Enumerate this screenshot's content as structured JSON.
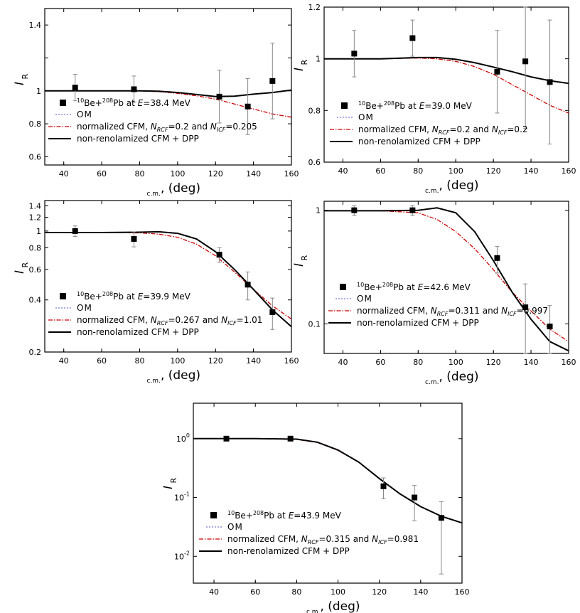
{
  "chart_data": [
    {
      "type": "line",
      "scale": "linear",
      "ylim": [
        0.55,
        1.5
      ],
      "xlim": [
        30,
        160
      ],
      "yticks": [
        0.6,
        0.8,
        1.0,
        1.2,
        1.4
      ],
      "ytick_labels": [
        "0.6",
        "0.8",
        "1",
        "",
        "1.4"
      ],
      "xticks": [
        40,
        60,
        80,
        100,
        120,
        140,
        160
      ],
      "ylabel": "I",
      "ylabel_sub": "R",
      "xlabel_sub": "c.m.",
      "xlabel": ", (deg)",
      "legend": {
        "reaction_pre": "10",
        "reaction_be": "Be+",
        "reaction_mass": "208",
        "reaction_pb": "Pb at ",
        "reaction_e": "E",
        "reaction_energy": "=38.4 MeV",
        "om": "OM",
        "cfm_prefix": "normalized CFM, ",
        "n_symbol": "N",
        "n_rcf_sub": "RCF",
        "n_rcf_value": "=0.2 and ",
        "n_icf_sub": "ICF",
        "n_icf_value": "=0.205",
        "dpp": "non-renolamized CFM + DPP"
      },
      "experiment": {
        "x": [
          46,
          77,
          122,
          137,
          150
        ],
        "y": [
          1.02,
          1.01,
          0.965,
          0.905,
          1.06
        ],
        "err": [
          0.08,
          0.08,
          0.16,
          0.17,
          0.23
        ]
      },
      "series": [
        {
          "name": "normalized CFM",
          "x": [
            30,
            60,
            80,
            90,
            100,
            110,
            120,
            130,
            140,
            150,
            160
          ],
          "y": [
            1.0,
            1.0,
            1.0,
            0.995,
            0.985,
            0.97,
            0.95,
            0.92,
            0.89,
            0.86,
            0.84
          ]
        },
        {
          "name": "non-renolamized CFM + DPP",
          "x": [
            30,
            60,
            80,
            90,
            100,
            110,
            120,
            130,
            140,
            150,
            160
          ],
          "y": [
            1.0,
            1.0,
            1.0,
            0.998,
            0.99,
            0.978,
            0.966,
            0.968,
            0.98,
            0.99,
            1.005
          ]
        }
      ]
    },
    {
      "type": "line",
      "scale": "linear",
      "ylim": [
        0.6,
        1.2
      ],
      "xlim": [
        30,
        160
      ],
      "yticks": [
        0.6,
        0.8,
        1.0,
        1.2
      ],
      "ytick_labels": [
        "0.6",
        "0.8",
        "1",
        "1.2"
      ],
      "xticks": [
        40,
        60,
        80,
        100,
        120,
        140,
        160
      ],
      "ylabel": "I",
      "ylabel_sub": "R",
      "xlabel_sub": "c.m.",
      "xlabel": ", (deg)",
      "legend": {
        "reaction_pre": "10",
        "reaction_be": "Be+",
        "reaction_mass": "208",
        "reaction_pb": "Pb at ",
        "reaction_e": "E",
        "reaction_energy": "=39.0 MeV",
        "om": "OM",
        "cfm_prefix": "normalized CFM, ",
        "n_symbol": "N",
        "n_rcf_sub": "RCF",
        "n_rcf_value": "=0.2 and ",
        "n_icf_sub": "ICF",
        "n_icf_value": "=0.2",
        "dpp": "non-renolamized CFM + DPP"
      },
      "experiment": {
        "x": [
          46,
          77,
          122,
          137,
          150
        ],
        "y": [
          1.02,
          1.08,
          0.95,
          0.99,
          0.91
        ],
        "err": [
          0.09,
          0.07,
          0.16,
          0.26,
          0.24
        ]
      },
      "series": [
        {
          "name": "normalized CFM",
          "x": [
            30,
            60,
            80,
            90,
            100,
            110,
            120,
            130,
            140,
            150,
            160
          ],
          "y": [
            1.0,
            1.0,
            1.003,
            1.0,
            0.99,
            0.97,
            0.94,
            0.9,
            0.86,
            0.82,
            0.79
          ]
        },
        {
          "name": "non-renolamized CFM + DPP",
          "x": [
            30,
            60,
            80,
            90,
            100,
            110,
            120,
            130,
            140,
            150,
            160
          ],
          "y": [
            1.0,
            1.0,
            1.005,
            1.005,
            0.998,
            0.985,
            0.968,
            0.95,
            0.93,
            0.915,
            0.905
          ]
        }
      ]
    },
    {
      "type": "line",
      "scale": "log",
      "ylim": [
        0.2,
        1.5
      ],
      "xlim": [
        30,
        160
      ],
      "yticks": [
        0.2,
        0.4,
        0.6,
        0.8,
        1.0,
        1.2,
        1.4
      ],
      "ytick_labels": [
        "0.2",
        "0.4",
        "0.6",
        "0.8",
        "1",
        "1.2",
        "1.4"
      ],
      "xticks": [
        40,
        60,
        80,
        100,
        120,
        140,
        160
      ],
      "ylabel": "I",
      "ylabel_sub": "R",
      "xlabel_sub": "c.m.",
      "xlabel": ", (deg)",
      "legend": {
        "reaction_pre": "10",
        "reaction_be": "Be+",
        "reaction_mass": "208",
        "reaction_pb": "Pb at ",
        "reaction_e": "E",
        "reaction_energy": "=39.9 MeV",
        "om": "OM",
        "cfm_prefix": "normalized CFM, ",
        "n_symbol": "N",
        "n_rcf_sub": "RCF",
        "n_rcf_value": "=0.267 and ",
        "n_icf_sub": "ICF",
        "n_icf_value": "=1.01",
        "dpp": "non-renolamized CFM + DPP"
      },
      "experiment": {
        "x": [
          46,
          77,
          122,
          137,
          150
        ],
        "y": [
          1.0,
          0.9,
          0.73,
          0.49,
          0.34
        ],
        "err": [
          0.07,
          0.09,
          0.07,
          0.09,
          0.07
        ]
      },
      "series": [
        {
          "name": "normalized CFM",
          "x": [
            30,
            60,
            80,
            90,
            100,
            110,
            120,
            130,
            140,
            150,
            160
          ],
          "y": [
            0.98,
            0.98,
            0.975,
            0.96,
            0.92,
            0.84,
            0.72,
            0.58,
            0.46,
            0.37,
            0.31
          ]
        },
        {
          "name": "non-renolamized CFM + DPP",
          "x": [
            30,
            60,
            80,
            90,
            100,
            110,
            120,
            130,
            140,
            150,
            160
          ],
          "y": [
            0.98,
            0.98,
            0.985,
            0.99,
            0.97,
            0.9,
            0.76,
            0.6,
            0.46,
            0.35,
            0.28
          ]
        }
      ]
    },
    {
      "type": "line",
      "scale": "log",
      "ylim": [
        0.055,
        1.2
      ],
      "xlim": [
        30,
        160
      ],
      "yticks": [
        0.1,
        1.0
      ],
      "ytick_labels": [
        "0.1",
        "1"
      ],
      "xticks": [
        40,
        60,
        80,
        100,
        120,
        140,
        160
      ],
      "ylabel": "I",
      "ylabel_sub": "R",
      "xlabel_sub": "c.m.",
      "xlabel": ", (deg)",
      "legend": {
        "reaction_pre": "10",
        "reaction_be": "Be+",
        "reaction_mass": "208",
        "reaction_pb": "Pb at ",
        "reaction_e": "E",
        "reaction_energy": "=42.6 MeV",
        "om": "OM",
        "cfm_prefix": "normalized CFM, ",
        "n_symbol": "N",
        "n_rcf_sub": "RCF",
        "n_rcf_value": "=0.311 and ",
        "n_icf_sub": "ICF",
        "n_icf_value": "=0.997",
        "dpp": "non-renolamized CFM + DPP"
      },
      "experiment": {
        "x": [
          46,
          77,
          122,
          137,
          150
        ],
        "y": [
          1.0,
          1.0,
          0.38,
          0.14,
          0.095
        ],
        "err": [
          0.1,
          0.1,
          0.1,
          0.085,
          0.05
        ]
      },
      "series": [
        {
          "name": "normalized CFM",
          "x": [
            30,
            60,
            80,
            90,
            100,
            110,
            120,
            130,
            140,
            150,
            160
          ],
          "y": [
            0.99,
            0.99,
            0.95,
            0.83,
            0.65,
            0.46,
            0.3,
            0.19,
            0.13,
            0.09,
            0.07
          ]
        },
        {
          "name": "non-renolamized CFM + DPP",
          "x": [
            30,
            60,
            80,
            90,
            100,
            110,
            120,
            130,
            140,
            150,
            160
          ],
          "y": [
            0.99,
            0.99,
            1.0,
            1.05,
            0.95,
            0.65,
            0.36,
            0.19,
            0.11,
            0.07,
            0.058
          ]
        }
      ]
    },
    {
      "type": "line",
      "scale": "log",
      "ylim": [
        0.0035,
        4.0
      ],
      "xlim": [
        30,
        160
      ],
      "yticks": [
        0.01,
        0.1,
        1.0
      ],
      "ytick_labels": [
        "10",
        "10",
        "10"
      ],
      "ytick_exps": [
        "-2",
        "-1",
        "0"
      ],
      "xticks": [
        40,
        60,
        80,
        100,
        120,
        140,
        160
      ],
      "ylabel": "I",
      "ylabel_sub": "R",
      "xlabel_sub": "c.m.",
      "xlabel": ", (deg)",
      "legend": {
        "reaction_pre": "10",
        "reaction_be": "Be+",
        "reaction_mass": "208",
        "reaction_pb": "Pb at ",
        "reaction_e": "E",
        "reaction_energy": "=43.9 MeV",
        "om": "OM",
        "cfm_prefix": "normalized CFM, ",
        "n_symbol": "N",
        "n_rcf_sub": "RCF",
        "n_rcf_value": "=0.315 and ",
        "n_icf_sub": "ICF",
        "n_icf_value": "=0.981",
        "dpp": "non-renolamized CFM + DPP"
      },
      "experiment": {
        "x": [
          46,
          77,
          122,
          137,
          150
        ],
        "y": [
          1.0,
          1.0,
          0.155,
          0.1,
          0.045
        ],
        "err": [
          0.05,
          0.05,
          0.06,
          0.06,
          0.04
        ]
      },
      "series": [
        {
          "name": "normalized CFM",
          "x": [
            30,
            60,
            80,
            90,
            100,
            110,
            120,
            130,
            140,
            150,
            160
          ],
          "y": [
            1.0,
            1.0,
            0.97,
            0.86,
            0.63,
            0.4,
            0.21,
            0.115,
            0.07,
            0.048,
            0.037
          ]
        },
        {
          "name": "non-renolamized CFM + DPP",
          "x": [
            30,
            60,
            80,
            90,
            100,
            110,
            120,
            130,
            140,
            150,
            160
          ],
          "y": [
            1.0,
            1.0,
            0.98,
            0.87,
            0.64,
            0.4,
            0.21,
            0.115,
            0.07,
            0.048,
            0.037
          ]
        }
      ]
    }
  ],
  "colors": {
    "axis": "#000000",
    "cfm": "#cc0000",
    "om": "#5555cc",
    "dpp": "#000000",
    "errorbar": "#888888"
  }
}
